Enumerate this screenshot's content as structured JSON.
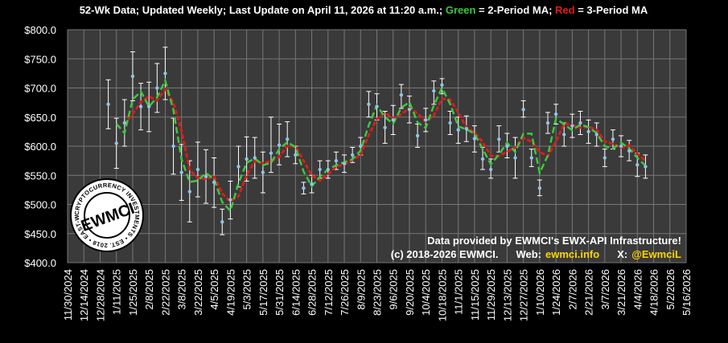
{
  "chart_data": {
    "type": "line",
    "title": {
      "part1": "52-Wk Data; Updated Weekly; Last Update on April 11, 2026 at 11:20 a.m.; ",
      "green_word": "Green",
      "part2": " = 2-Period MA; ",
      "red_word": "Red",
      "part3": " = 3-Period MA"
    },
    "colors": {
      "background": "#000000",
      "plot_bg": "#3a3a3a",
      "grid": "#777777",
      "data_point": "#8ec4e8",
      "error_bar": "#ffffff",
      "ma2": "#3cc83c",
      "ma3": "#e01a1a",
      "highlight": "#ffd400"
    },
    "ylim": [
      400,
      800
    ],
    "yticks": [
      400,
      450,
      500,
      550,
      600,
      650,
      700,
      750,
      800
    ],
    "ytick_labels": [
      "$400.0",
      "$450.0",
      "$500.0",
      "$550.0",
      "$600.0",
      "$650.0",
      "$700.0",
      "$750.0",
      "$800.0"
    ],
    "xlim": [
      "2024-11-30",
      "2026-05-16"
    ],
    "xtick_labels": [
      "11/30/2024",
      "12/14/2024",
      "12/28/2024",
      "1/11/2025",
      "1/25/2025",
      "2/8/2025",
      "2/22/2025",
      "3/8/2025",
      "3/22/2025",
      "4/5/2025",
      "4/19/2025",
      "5/3/2025",
      "5/17/2025",
      "5/31/2025",
      "6/14/2025",
      "6/28/2025",
      "7/12/2025",
      "7/26/2025",
      "8/9/2025",
      "8/23/2025",
      "9/6/2025",
      "9/20/2025",
      "10/4/2025",
      "10/18/2025",
      "11/1/2025",
      "11/15/2025",
      "11/29/2025",
      "12/13/2025",
      "12/27/2025",
      "1/10/2026",
      "1/24/2026",
      "2/7/2026",
      "2/21/2026",
      "3/7/2026",
      "3/21/2026",
      "4/4/2026",
      "4/18/2026",
      "5/2/2026",
      "5/16/2026"
    ],
    "grid": true,
    "series": [
      {
        "name": "Green",
        "kind": "2-Period MA"
      },
      {
        "name": "Red",
        "kind": "3-Period MA"
      }
    ],
    "points": [
      {
        "x": "2025-01-04",
        "y": 672,
        "low": 630,
        "high": 714
      },
      {
        "x": "2025-01-11",
        "y": 605,
        "low": 562,
        "high": 648
      },
      {
        "x": "2025-01-18",
        "y": 640,
        "low": 600,
        "high": 680
      },
      {
        "x": "2025-01-25",
        "y": 720,
        "low": 678,
        "high": 762
      },
      {
        "x": "2025-02-01",
        "y": 668,
        "low": 628,
        "high": 708
      },
      {
        "x": "2025-02-08",
        "y": 668,
        "low": 625,
        "high": 710
      },
      {
        "x": "2025-02-15",
        "y": 700,
        "low": 658,
        "high": 742
      },
      {
        "x": "2025-02-22",
        "y": 725,
        "low": 680,
        "high": 770
      },
      {
        "x": "2025-03-01",
        "y": 600,
        "low": 552,
        "high": 648
      },
      {
        "x": "2025-03-08",
        "y": 555,
        "low": 507,
        "high": 603
      },
      {
        "x": "2025-03-15",
        "y": 522,
        "low": 470,
        "high": 575
      },
      {
        "x": "2025-03-22",
        "y": 560,
        "low": 513,
        "high": 607
      },
      {
        "x": "2025-03-29",
        "y": 548,
        "low": 502,
        "high": 594
      },
      {
        "x": "2025-04-05",
        "y": 538,
        "low": 495,
        "high": 580
      },
      {
        "x": "2025-04-12",
        "y": 470,
        "low": 448,
        "high": 492
      },
      {
        "x": "2025-04-19",
        "y": 508,
        "low": 475,
        "high": 540
      },
      {
        "x": "2025-04-26",
        "y": 565,
        "low": 530,
        "high": 600
      },
      {
        "x": "2025-05-03",
        "y": 578,
        "low": 540,
        "high": 616
      },
      {
        "x": "2025-05-10",
        "y": 580,
        "low": 545,
        "high": 615
      },
      {
        "x": "2025-05-17",
        "y": 555,
        "low": 520,
        "high": 590
      },
      {
        "x": "2025-05-24",
        "y": 588,
        "low": 555,
        "high": 650
      },
      {
        "x": "2025-05-31",
        "y": 602,
        "low": 568,
        "high": 638
      },
      {
        "x": "2025-06-07",
        "y": 612,
        "low": 582,
        "high": 642
      },
      {
        "x": "2025-06-14",
        "y": 585,
        "low": 570,
        "high": 600
      },
      {
        "x": "2025-06-21",
        "y": 528,
        "low": 518,
        "high": 538
      },
      {
        "x": "2025-06-28",
        "y": 535,
        "low": 520,
        "high": 550
      },
      {
        "x": "2025-07-05",
        "y": 560,
        "low": 545,
        "high": 575
      },
      {
        "x": "2025-07-12",
        "y": 560,
        "low": 545,
        "high": 575
      },
      {
        "x": "2025-07-19",
        "y": 575,
        "low": 560,
        "high": 590
      },
      {
        "x": "2025-07-26",
        "y": 570,
        "low": 555,
        "high": 585
      },
      {
        "x": "2025-08-02",
        "y": 585,
        "low": 572,
        "high": 598
      },
      {
        "x": "2025-08-09",
        "y": 600,
        "low": 585,
        "high": 615
      },
      {
        "x": "2025-08-16",
        "y": 672,
        "low": 650,
        "high": 694
      },
      {
        "x": "2025-08-23",
        "y": 668,
        "low": 645,
        "high": 690
      },
      {
        "x": "2025-08-30",
        "y": 632,
        "low": 605,
        "high": 660
      },
      {
        "x": "2025-09-06",
        "y": 645,
        "low": 620,
        "high": 670
      },
      {
        "x": "2025-09-13",
        "y": 688,
        "low": 665,
        "high": 706
      },
      {
        "x": "2025-09-20",
        "y": 663,
        "low": 640,
        "high": 686
      },
      {
        "x": "2025-09-27",
        "y": 618,
        "low": 598,
        "high": 638
      },
      {
        "x": "2025-10-04",
        "y": 645,
        "low": 625,
        "high": 665
      },
      {
        "x": "2025-10-11",
        "y": 695,
        "low": 672,
        "high": 712
      },
      {
        "x": "2025-10-18",
        "y": 705,
        "low": 690,
        "high": 716
      },
      {
        "x": "2025-10-25",
        "y": 640,
        "low": 620,
        "high": 660
      },
      {
        "x": "2025-11-01",
        "y": 628,
        "low": 605,
        "high": 650
      },
      {
        "x": "2025-11-08",
        "y": 630,
        "low": 608,
        "high": 652
      },
      {
        "x": "2025-11-15",
        "y": 613,
        "low": 590,
        "high": 635
      },
      {
        "x": "2025-11-22",
        "y": 578,
        "low": 560,
        "high": 598
      },
      {
        "x": "2025-11-29",
        "y": 560,
        "low": 545,
        "high": 578
      },
      {
        "x": "2025-12-06",
        "y": 612,
        "low": 590,
        "high": 635
      },
      {
        "x": "2025-12-13",
        "y": 600,
        "low": 580,
        "high": 622
      },
      {
        "x": "2025-12-20",
        "y": 580,
        "low": 545,
        "high": 615
      },
      {
        "x": "2025-12-27",
        "y": 663,
        "low": 650,
        "high": 678
      },
      {
        "x": "2026-01-03",
        "y": 580,
        "low": 565,
        "high": 595
      },
      {
        "x": "2026-01-10",
        "y": 528,
        "low": 515,
        "high": 542
      },
      {
        "x": "2026-01-17",
        "y": 640,
        "low": 622,
        "high": 658
      },
      {
        "x": "2026-01-24",
        "y": 655,
        "low": 638,
        "high": 672
      },
      {
        "x": "2026-01-31",
        "y": 620,
        "low": 600,
        "high": 640
      },
      {
        "x": "2026-02-07",
        "y": 635,
        "low": 615,
        "high": 655
      },
      {
        "x": "2026-02-14",
        "y": 640,
        "low": 620,
        "high": 660
      },
      {
        "x": "2026-02-21",
        "y": 625,
        "low": 605,
        "high": 645
      },
      {
        "x": "2026-02-28",
        "y": 620,
        "low": 600,
        "high": 640
      },
      {
        "x": "2026-03-07",
        "y": 580,
        "low": 565,
        "high": 595
      },
      {
        "x": "2026-03-14",
        "y": 612,
        "low": 595,
        "high": 628
      },
      {
        "x": "2026-03-21",
        "y": 600,
        "low": 582,
        "high": 618
      },
      {
        "x": "2026-03-28",
        "y": 592,
        "low": 575,
        "high": 610
      },
      {
        "x": "2026-04-04",
        "y": 568,
        "low": 548,
        "high": 588
      },
      {
        "x": "2026-04-11",
        "y": 565,
        "low": 545,
        "high": 585
      }
    ],
    "credits": {
      "line1": "Data provided by EWMCI's EWX-API Infrastructure!",
      "copyright": "(c) 2018-2026 EWMCI.",
      "web_label": "Web:",
      "web_value": "ewmci.info",
      "x_label": "X:",
      "x_value": "@EwmciL"
    },
    "logo": {
      "center_text": "EWMCI",
      "ring_text": "CRYPTOCURRENCY INVESTMENTS • EST. 2018 • EAST-WEST MAGNATE •"
    }
  }
}
